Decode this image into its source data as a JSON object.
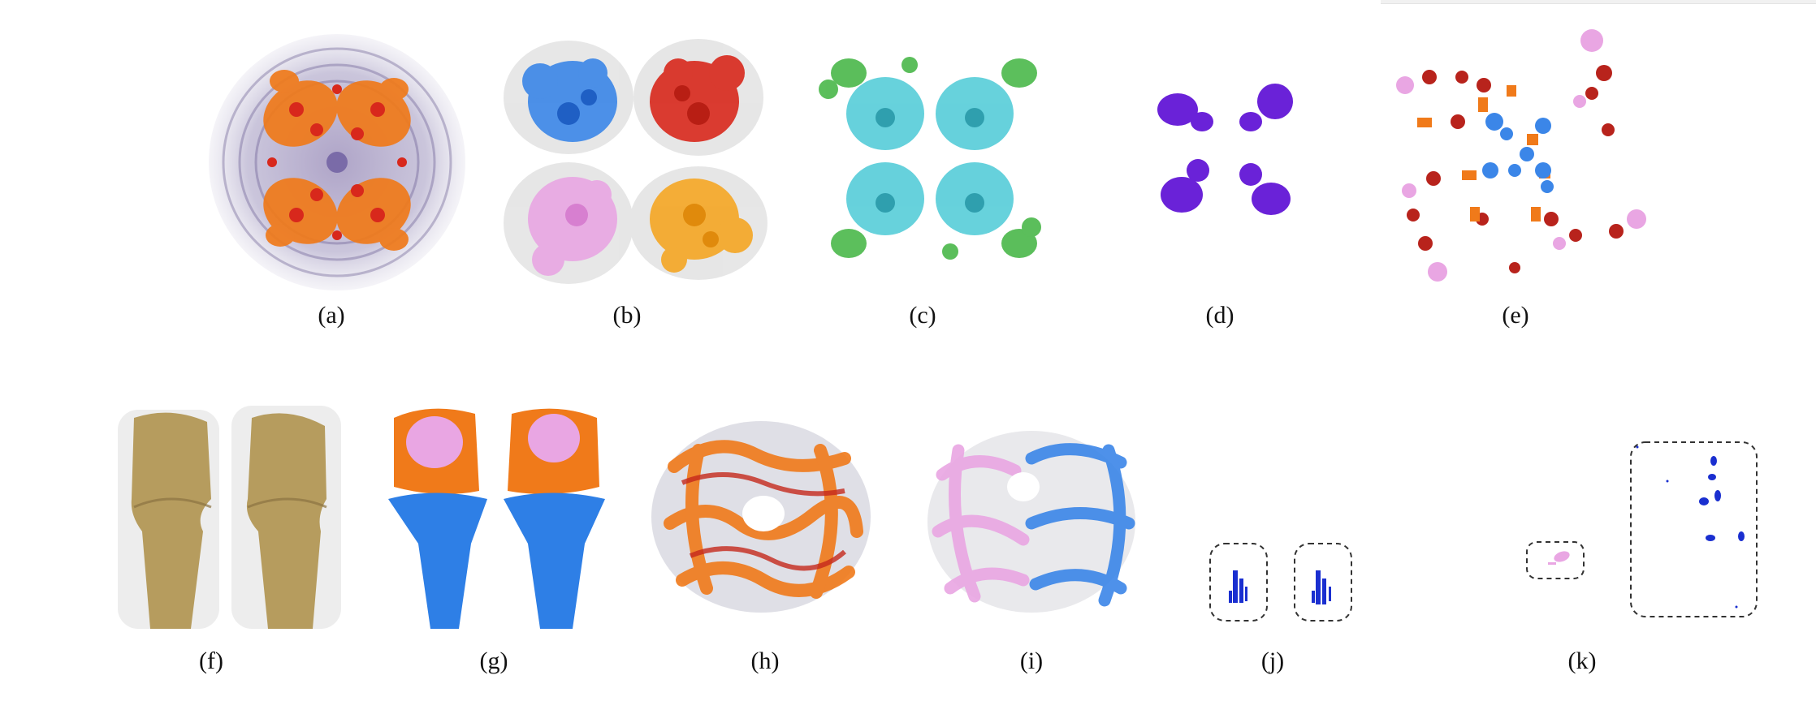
{
  "figure": {
    "captions": [
      "(a)",
      "(b)",
      "(c)",
      "(d)",
      "(e)",
      "(f)",
      "(g)",
      "(h)",
      "(i)",
      "(j)",
      "(k)"
    ]
  },
  "colors": {
    "purple_haze": "#8a7fb0",
    "orange": "#f07a1a",
    "red": "#d8281c",
    "blue": "#3b86e8",
    "pink": "#e9a6e3",
    "yellow_orange": "#f5a623",
    "cyan": "#4ccad6",
    "green": "#4ab84a",
    "violet": "#6a22d8",
    "dark_red": "#b8231c",
    "bone": "#b69c5e",
    "bright_blue": "#2e7fe6",
    "deep_blue": "#1a2fd0"
  }
}
